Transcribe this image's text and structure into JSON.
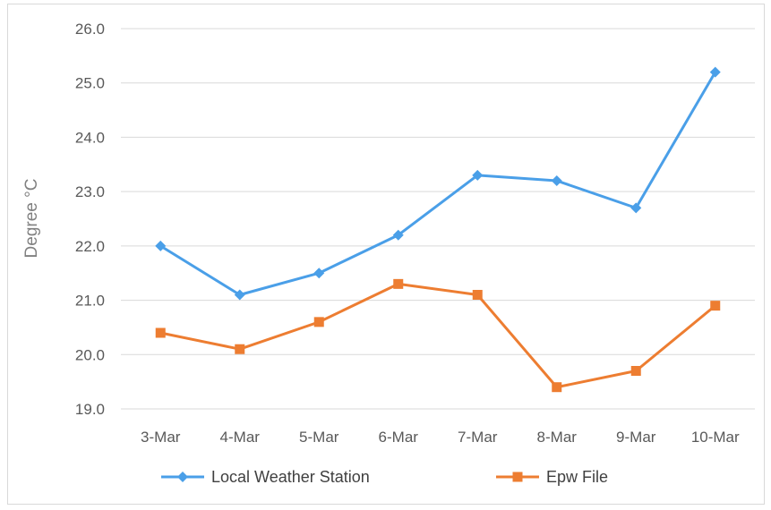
{
  "chart_data": {
    "type": "line",
    "title": "",
    "xlabel": "",
    "ylabel": "Degree °C",
    "categories": [
      "3-Mar",
      "4-Mar",
      "5-Mar",
      "6-Mar",
      "7-Mar",
      "8-Mar",
      "9-Mar",
      "10-Mar"
    ],
    "ylim": [
      19.0,
      26.0
    ],
    "yticks": [
      "19.0",
      "20.0",
      "21.0",
      "22.0",
      "23.0",
      "24.0",
      "25.0",
      "26.0"
    ],
    "grid": true,
    "legend_position": "bottom",
    "series": [
      {
        "name": "Local Weather Station",
        "color": "#4a9fe8",
        "marker": "diamond",
        "values": [
          22.0,
          21.1,
          21.5,
          22.2,
          23.3,
          23.2,
          22.7,
          25.2
        ]
      },
      {
        "name": "Epw File",
        "color": "#ed7d31",
        "marker": "square",
        "values": [
          20.4,
          20.1,
          20.6,
          21.3,
          21.1,
          19.4,
          19.7,
          20.9
        ]
      }
    ]
  }
}
